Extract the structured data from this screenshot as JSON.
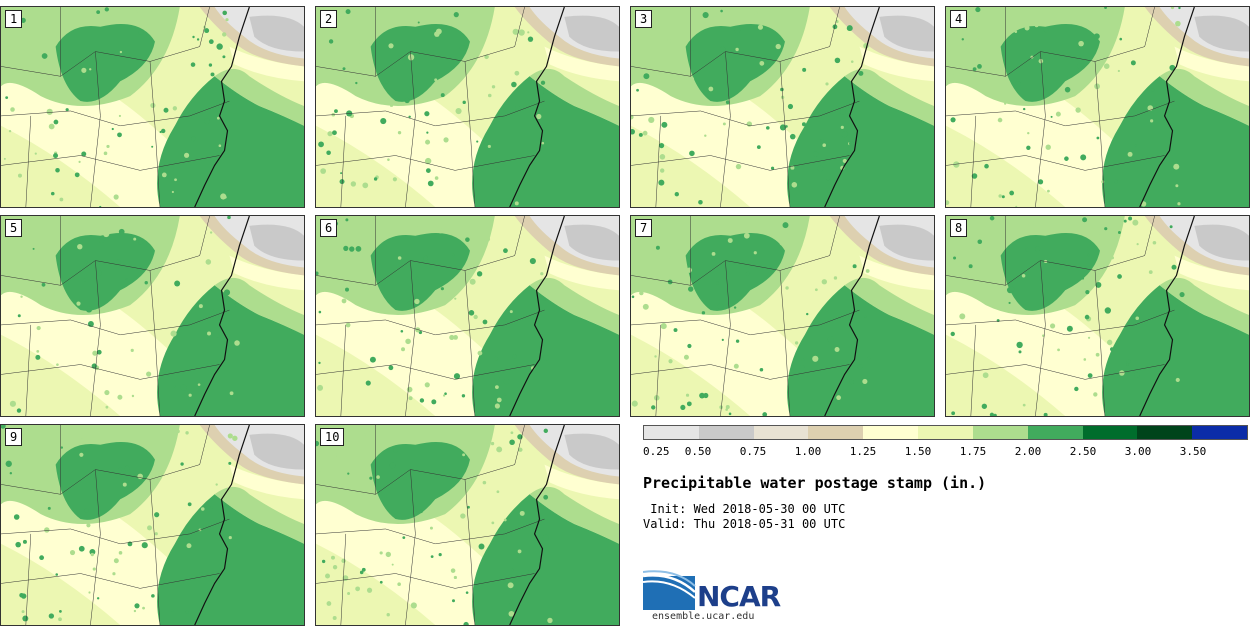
{
  "panels": [
    {
      "label": "1"
    },
    {
      "label": "2"
    },
    {
      "label": "3"
    },
    {
      "label": "4"
    },
    {
      "label": "5"
    },
    {
      "label": "6"
    },
    {
      "label": "7"
    },
    {
      "label": "8"
    },
    {
      "label": "9"
    },
    {
      "label": "10"
    }
  ],
  "legend": {
    "ticks": [
      "0.25",
      "0.50",
      "0.75",
      "1.00",
      "1.25",
      "1.50",
      "1.75",
      "2.00",
      "2.50",
      "3.00",
      "3.50"
    ],
    "colors": [
      "#e5e5e5",
      "#c9c9c9",
      "#e8e2d3",
      "#ddd0b0",
      "#ffffd1",
      "#ecf7b2",
      "#addd8e",
      "#41ab5d",
      "#006d2c",
      "#00441b",
      "#0b2ca8"
    ]
  },
  "title": "Precipitable water postage stamp (in.)",
  "init": " Init: Wed 2018-05-30 00 UTC",
  "valid": "Valid: Thu 2018-05-31 00 UTC",
  "logo": {
    "text": "NCAR",
    "url": "ensemble.ucar.edu"
  },
  "colors": {
    "pale": "#ffffd1",
    "light": "#ecf7b2",
    "mid": "#addd8e",
    "dark": "#41ab5d",
    "gray": "#c9c9c9",
    "lightgray": "#e5e5e5",
    "tan": "#ddd0b0"
  }
}
